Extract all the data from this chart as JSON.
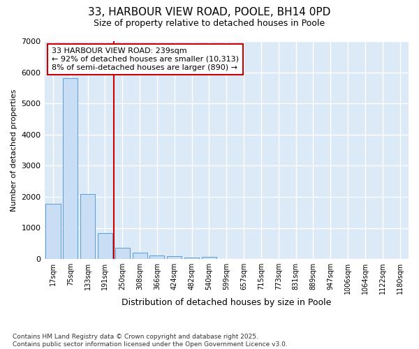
{
  "title_line1": "33, HARBOUR VIEW ROAD, POOLE, BH14 0PD",
  "title_line2": "Size of property relative to detached houses in Poole",
  "xlabel": "Distribution of detached houses by size in Poole",
  "ylabel": "Number of detached properties",
  "categories": [
    "17sqm",
    "75sqm",
    "133sqm",
    "191sqm",
    "250sqm",
    "308sqm",
    "366sqm",
    "424sqm",
    "482sqm",
    "540sqm",
    "599sqm",
    "657sqm",
    "715sqm",
    "773sqm",
    "831sqm",
    "889sqm",
    "947sqm",
    "1006sqm",
    "1064sqm",
    "1122sqm",
    "1180sqm"
  ],
  "values": [
    1780,
    5820,
    2080,
    840,
    360,
    200,
    120,
    85,
    50,
    80,
    5,
    3,
    2,
    1,
    0,
    0,
    0,
    0,
    0,
    0,
    0
  ],
  "bar_color": "#c9ddf5",
  "bar_edge_color": "#5b9bd5",
  "annotation_text": "33 HARBOUR VIEW ROAD: 239sqm\n← 92% of detached houses are smaller (10,313)\n8% of semi-detached houses are larger (890) →",
  "vline_color": "#cc0000",
  "vline_x": 3.5,
  "annotation_box_color": "#ffffff",
  "annotation_box_edge": "#cc0000",
  "footnote": "Contains HM Land Registry data © Crown copyright and database right 2025.\nContains public sector information licensed under the Open Government Licence v3.0.",
  "ylim": [
    0,
    7000
  ],
  "yticks": [
    0,
    1000,
    2000,
    3000,
    4000,
    5000,
    6000,
    7000
  ],
  "fig_bg_color": "#ffffff",
  "plot_bg_color": "#dce9f7",
  "grid_color": "#ffffff"
}
